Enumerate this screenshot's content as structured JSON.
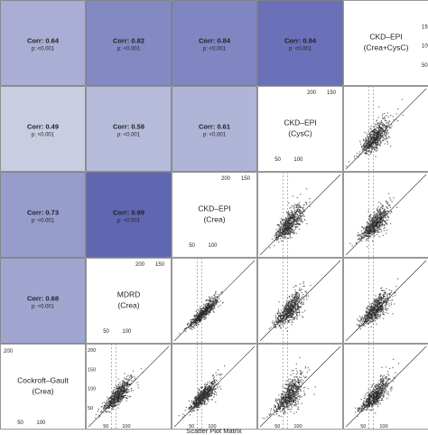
{
  "chart_data": {
    "type": "scatter",
    "title": "",
    "footer": "Scatter Plot Matrix",
    "variables": [
      {
        "line1": "Cockroft–Gault",
        "line2": "(Crea)"
      },
      {
        "line1": "MDRD",
        "line2": "(Crea)"
      },
      {
        "line1": "CKD–EPI",
        "line2": "(Crea)"
      },
      {
        "line1": "CKD–EPI",
        "line2": "(CysC)"
      },
      {
        "line1": "CKD–EPI",
        "line2": "(Crea+CysC)"
      }
    ],
    "correlations": [
      {
        "row": 0,
        "col": 4,
        "corr_text": "Corr: 0.64",
        "p_text": "p: <0.001",
        "value": 0.64
      },
      {
        "row": 0,
        "col": 3,
        "corr_text": "Corr: 0.82",
        "p_text": "p: <0.001",
        "value": 0.82
      },
      {
        "row": 0,
        "col": 2,
        "corr_text": "Corr: 0.84",
        "p_text": "p: <0.001",
        "value": 0.84
      },
      {
        "row": 0,
        "col": 1,
        "corr_text": "Corr: 0.94",
        "p_text": "p: <0.001",
        "value": 0.94
      },
      {
        "row": 1,
        "col": 4,
        "corr_text": "Corr: 0.49",
        "p_text": "p: <0.001",
        "value": 0.49
      },
      {
        "row": 1,
        "col": 3,
        "corr_text": "Corr: 0.58",
        "p_text": "p: <0.001",
        "value": 0.58
      },
      {
        "row": 1,
        "col": 2,
        "corr_text": "Corr: 0.61",
        "p_text": "p: <0.001",
        "value": 0.61
      },
      {
        "row": 2,
        "col": 4,
        "corr_text": "Corr: 0.73",
        "p_text": "p: <0.001",
        "value": 0.73
      },
      {
        "row": 2,
        "col": 3,
        "corr_text": "Corr: 0.99",
        "p_text": "p: <0.001",
        "value": 0.99
      },
      {
        "row": 3,
        "col": 4,
        "corr_text": "Corr: 0.68",
        "p_text": "p: <0.001",
        "value": 0.68
      }
    ],
    "tick_labels": [
      "50",
      "100",
      "150",
      "200"
    ],
    "axis_range": [
      0,
      210
    ],
    "reference_lines": [
      60,
      72
    ],
    "colors": {
      "corr_low": "#d2d5e6",
      "corr_high": "#5d65b2",
      "points": "#2b2b2b",
      "grid": "#555555"
    }
  }
}
